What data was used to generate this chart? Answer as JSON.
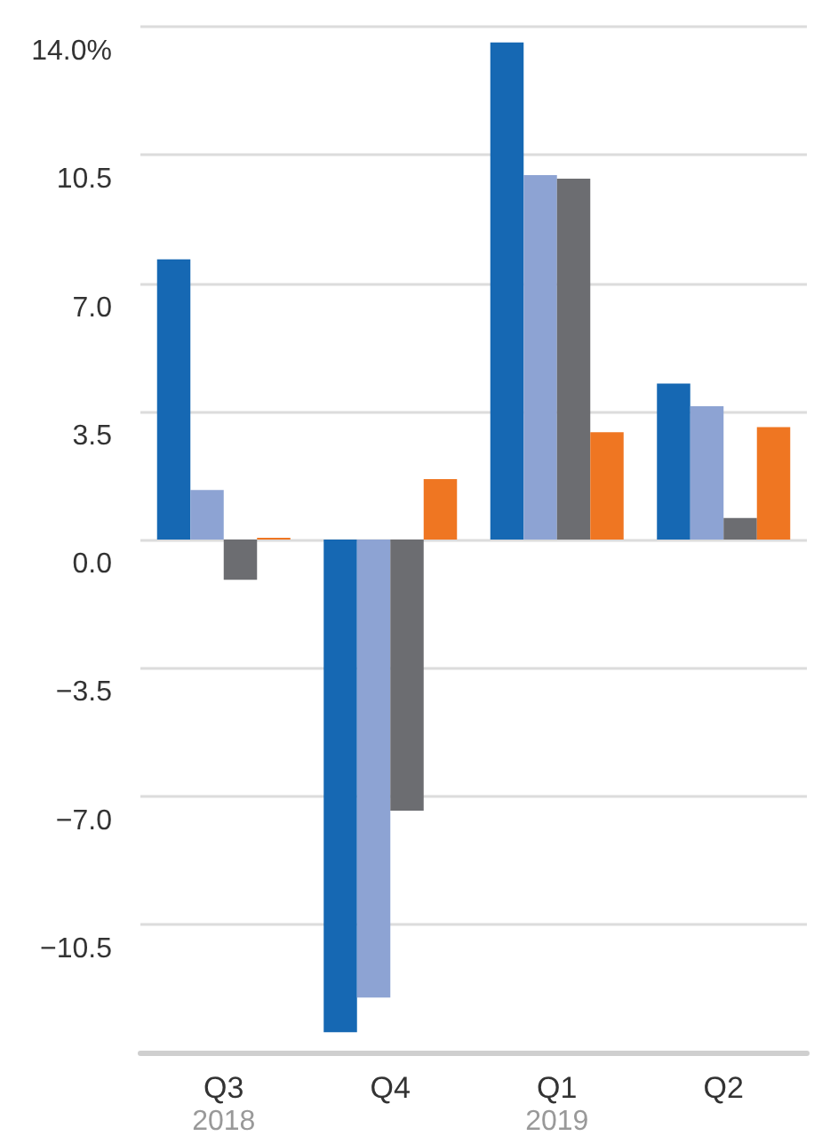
{
  "chart_data": {
    "type": "bar",
    "categories": [
      "Q3\n2018",
      "Q4",
      "Q1\n2019",
      "Q2"
    ],
    "series": [
      {
        "color": "#1668b3",
        "values": [
          7.65,
          -13.45,
          13.57,
          4.26
        ]
      },
      {
        "color": "#8da3d3",
        "values": [
          1.35,
          -12.5,
          9.95,
          3.64
        ]
      },
      {
        "color": "#6c6d71",
        "values": [
          -1.1,
          -7.4,
          9.85,
          0.59
        ]
      },
      {
        "color": "#ef7622",
        "values": [
          0.05,
          1.65,
          2.93,
          3.07
        ]
      }
    ],
    "ylim": [
      -14,
      14
    ],
    "yticks": [
      {
        "value": -14,
        "label": null
      },
      {
        "value": -10.5,
        "label": "−10.5"
      },
      {
        "value": -7,
        "label": "−7.0"
      },
      {
        "value": -3.5,
        "label": "−3.5"
      },
      {
        "value": 0,
        "label": "0.0"
      },
      {
        "value": 3.5,
        "label": "3.5"
      },
      {
        "value": 7,
        "label": "7.0"
      },
      {
        "value": 10.5,
        "label": "10.5"
      },
      {
        "value": 14,
        "label": "14.0%"
      }
    ],
    "grid": "y"
  }
}
